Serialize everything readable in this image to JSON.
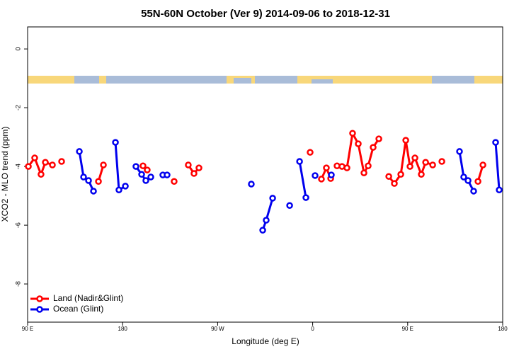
{
  "chart_data": {
    "type": "line",
    "title": "55N-60N October (Ver 9)   2014-09-06 to 2018-12-31",
    "x_label": "Longitude (deg E)",
    "y_label": "XCO2 - MLO trend (ppm)",
    "xlim": [
      90,
      540
    ],
    "xticks": [
      {
        "value": 90,
        "label": "90 E"
      },
      180,
      {
        "value": 270,
        "label": "90 W"
      },
      {
        "value": 360,
        "label": "0"
      },
      {
        "value": 450,
        "label": "90 E"
      },
      {
        "value": 540,
        "label": "180"
      }
    ],
    "ylim": [
      -9.3,
      0.75
    ],
    "yticks": [
      0,
      -2,
      -4,
      -6,
      -8
    ],
    "legend": "bottom-left",
    "series": [
      {
        "name": "Land (Nadir&Glint)",
        "color": "#ff0000",
        "x": [
          90.7,
          96.7,
          102.7,
          106.8,
          113.5,
          null,
          122.2,
          null,
          157.1,
          161.8,
          null,
          199.3,
          203.3,
          null,
          228.8,
          null,
          242.2,
          247.6,
          252.3,
          null,
          357.6,
          null,
          368.3,
          373.0,
          377.1,
          null,
          383.1,
          387.8,
          392.5,
          397.8,
          403.2,
          408.6,
          412.6,
          417.3,
          422.7,
          null,
          432.1,
          437.4,
          443.5,
          448.2,
          452.2,
          456.9,
          462.9,
          467.0,
          473.7,
          null,
          482.4,
          null,
          516.6,
          521.3
        ],
        "values": [
          -4.0,
          -3.71,
          -4.27,
          -3.86,
          -3.95,
          null,
          -3.83,
          null,
          -4.51,
          -3.95,
          null,
          -3.98,
          -4.12,
          null,
          -4.51,
          null,
          -3.95,
          -4.24,
          -4.05,
          null,
          -3.52,
          null,
          -4.43,
          -4.05,
          -4.41,
          null,
          -3.98,
          -4.0,
          -4.05,
          -2.87,
          -3.23,
          -4.22,
          -3.98,
          -3.35,
          -3.06,
          null,
          -4.34,
          -4.58,
          -4.27,
          -3.11,
          -4.0,
          -3.71,
          -4.27,
          -3.86,
          -3.95,
          null,
          -3.83,
          null,
          -4.51,
          -3.95
        ]
      },
      {
        "name": "Ocean (Glint)",
        "color": "#0000ee",
        "x": [
          139.0,
          143.0,
          147.7,
          152.4,
          null,
          173.2,
          176.5,
          182.6,
          null,
          192.6,
          198.0,
          202.0,
          206.7,
          null,
          218.1,
          222.1,
          null,
          301.9,
          null,
          312.7,
          316.0,
          322.1,
          null,
          338.2,
          null,
          347.6,
          353.6,
          null,
          362.3,
          null,
          377.7,
          null,
          499.1,
          503.1,
          507.2,
          512.5,
          null,
          533.3,
          536.7
        ],
        "values": [
          -3.49,
          -4.36,
          -4.48,
          -4.84,
          null,
          -3.18,
          -4.8,
          -4.67,
          null,
          -4.0,
          -4.27,
          -4.48,
          -4.36,
          null,
          -4.29,
          -4.29,
          null,
          -4.6,
          null,
          -6.17,
          -5.83,
          -5.08,
          null,
          -5.33,
          null,
          -3.83,
          -5.06,
          null,
          -4.31,
          null,
          -4.29,
          null,
          -3.49,
          -4.36,
          -4.48,
          -4.84,
          null,
          -3.18,
          -4.8
        ]
      }
    ]
  }
}
